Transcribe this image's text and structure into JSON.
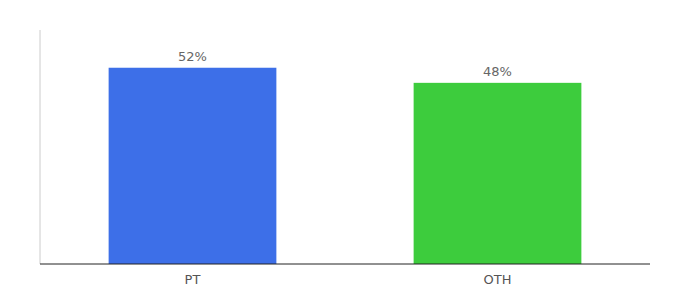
{
  "chart_data": {
    "type": "bar",
    "categories": [
      "PT",
      "OTH"
    ],
    "values": [
      52,
      48
    ],
    "value_labels": [
      "52%",
      "48%"
    ],
    "colors": [
      "#3d6fe8",
      "#3dcc3d"
    ],
    "ylim": [
      0,
      62
    ],
    "yticks": [],
    "tick_labels": "x",
    "data_labels": true,
    "grid": false
  }
}
